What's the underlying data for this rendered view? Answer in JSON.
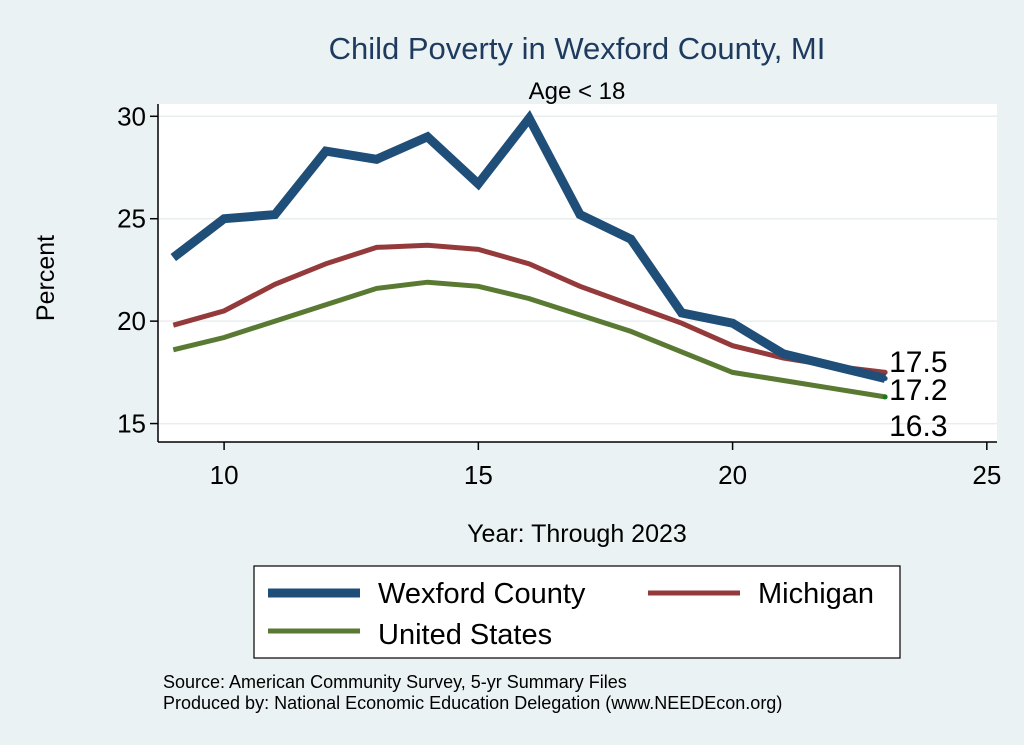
{
  "chart_data": {
    "type": "line",
    "title": "Child Poverty in Wexford County, MI",
    "subtitle": "Age < 18",
    "xlabel": "Year: Through 2023",
    "ylabel": "Percent",
    "xlim": [
      8.7,
      25.2
    ],
    "ylim": [
      14.1,
      30.6
    ],
    "xticks": [
      10,
      15,
      20,
      25
    ],
    "yticks": [
      15,
      20,
      25,
      30
    ],
    "grid": true,
    "legend_position": "bottom",
    "x": [
      9,
      10,
      11,
      12,
      13,
      14,
      15,
      16,
      17,
      18,
      19,
      20,
      21,
      22,
      23
    ],
    "series": [
      {
        "name": "Wexford County",
        "color": "#1f4e79",
        "width": 9,
        "values": [
          23.1,
          25.0,
          25.2,
          28.3,
          27.9,
          29.0,
          26.7,
          29.9,
          25.2,
          24.0,
          20.4,
          19.9,
          18.4,
          17.8,
          17.2
        ]
      },
      {
        "name": "Michigan",
        "color": "#953a3b",
        "width": 5,
        "values": [
          19.8,
          20.5,
          21.8,
          22.8,
          23.6,
          23.7,
          23.5,
          22.8,
          21.7,
          20.8,
          19.9,
          18.8,
          18.2,
          17.8,
          17.5
        ]
      },
      {
        "name": "United States",
        "color": "#5a7a33",
        "width": 5,
        "values": [
          18.6,
          19.2,
          20.0,
          20.8,
          21.6,
          21.9,
          21.7,
          21.1,
          20.3,
          19.5,
          18.5,
          17.5,
          17.1,
          16.7,
          16.3
        ]
      }
    ],
    "end_labels": [
      {
        "series": "Michigan",
        "text": "17.5"
      },
      {
        "series": "Wexford County",
        "text": "17.2"
      },
      {
        "series": "United States",
        "text": "16.3"
      }
    ]
  },
  "notes": {
    "source": "Source: American Community Survey, 5-yr Summary Files",
    "produced_by": "Produced by: National Economic Education Delegation (www.NEEDEcon.org)"
  }
}
